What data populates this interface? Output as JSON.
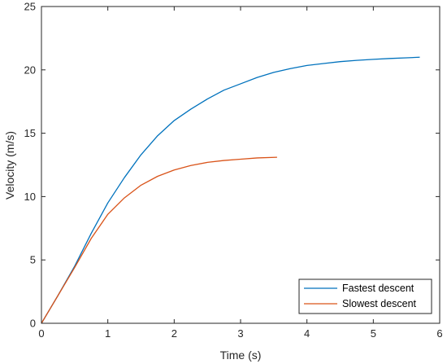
{
  "chart_data": {
    "type": "line",
    "xlabel": "Time (s)",
    "ylabel": "Velocity (m/s)",
    "xlim": [
      0,
      6
    ],
    "ylim": [
      0,
      25
    ],
    "xticks": [
      0,
      1,
      2,
      3,
      4,
      5,
      6
    ],
    "yticks": [
      0,
      5,
      10,
      15,
      20,
      25
    ],
    "grid": false,
    "box": true,
    "legend_position": "bottom-right",
    "series": [
      {
        "name": "Fastest descent",
        "color": "#0072BD",
        "x": [
          0,
          0.25,
          0.5,
          0.75,
          1.0,
          1.25,
          1.5,
          1.75,
          2.0,
          2.25,
          2.5,
          2.75,
          3.0,
          3.25,
          3.5,
          3.75,
          4.0,
          4.25,
          4.5,
          4.75,
          5.0,
          5.25,
          5.5,
          5.7
        ],
        "y": [
          0,
          2.2,
          4.5,
          7.1,
          9.5,
          11.5,
          13.3,
          14.8,
          16.0,
          16.9,
          17.7,
          18.4,
          18.9,
          19.4,
          19.8,
          20.1,
          20.35,
          20.5,
          20.65,
          20.75,
          20.83,
          20.9,
          20.95,
          21.0
        ]
      },
      {
        "name": "Slowest descent",
        "color": "#D95319",
        "x": [
          0,
          0.25,
          0.5,
          0.75,
          1.0,
          1.25,
          1.5,
          1.75,
          2.0,
          2.25,
          2.5,
          2.75,
          3.0,
          3.25,
          3.55
        ],
        "y": [
          0,
          2.2,
          4.4,
          6.7,
          8.6,
          9.9,
          10.9,
          11.6,
          12.1,
          12.45,
          12.7,
          12.85,
          12.95,
          13.05,
          13.1
        ]
      }
    ]
  }
}
